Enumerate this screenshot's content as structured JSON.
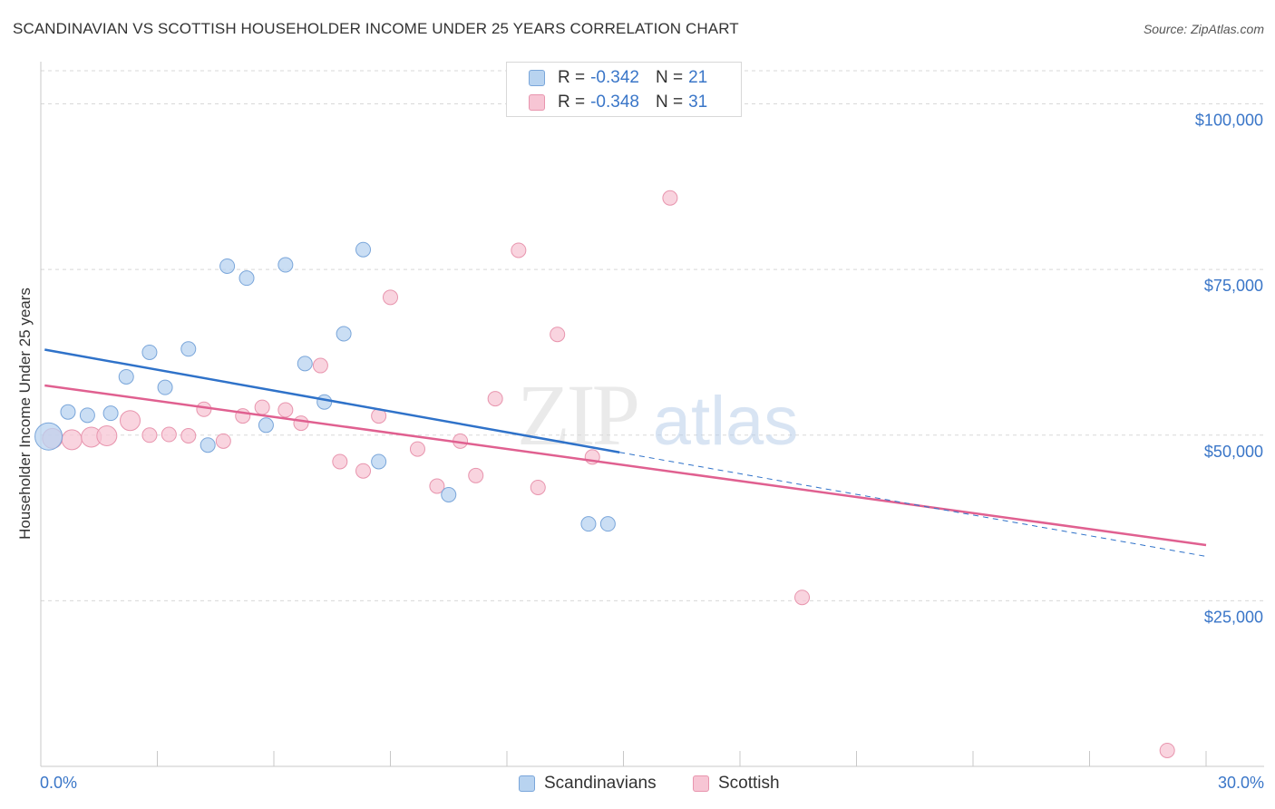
{
  "title": "SCANDINAVIAN VS SCOTTISH HOUSEHOLDER INCOME UNDER 25 YEARS CORRELATION CHART",
  "source": "Source: ZipAtlas.com",
  "watermark": {
    "zip": "ZIP",
    "atlas": "atlas"
  },
  "legend": {
    "rows": [
      {
        "r_label": "R =",
        "r_value": "-0.342",
        "n_label": "N =",
        "n_value": "21"
      },
      {
        "r_label": "R =",
        "r_value": "-0.348",
        "n_label": "N =",
        "n_value": "31"
      }
    ]
  },
  "bottom_legend": [
    "Scandinavians",
    "Scottish"
  ],
  "colors": {
    "scandinavian_fill": "#b8d3f0",
    "scandinavian_stroke": "#7aa6da",
    "scandinavian_line": "#2f72c9",
    "scottish_fill": "#f7c5d4",
    "scottish_stroke": "#e895ae",
    "scottish_line": "#e06090",
    "grid": "#d8d8d8",
    "axis_text": "#3a76c8"
  },
  "chart_data": {
    "type": "scatter",
    "title": "SCANDINAVIAN VS SCOTTISH HOUSEHOLDER INCOME UNDER 25 YEARS CORRELATION CHART",
    "xlabel": "",
    "ylabel": "Householder Income Under 25 years",
    "xlim": [
      0,
      30
    ],
    "ylim": [
      0,
      105000
    ],
    "x_tick_labels": [
      "0.0%",
      "30.0%"
    ],
    "y_ticks": [
      25000,
      50000,
      75000,
      100000
    ],
    "y_tick_labels": [
      "$25,000",
      "$50,000",
      "$75,000",
      "$100,000"
    ],
    "grid": true,
    "legend_position": "top-center",
    "series": [
      {
        "name": "Scandinavians",
        "points": [
          {
            "x": 0.2,
            "y": 49800,
            "size": "large"
          },
          {
            "x": 0.7,
            "y": 53500
          },
          {
            "x": 1.2,
            "y": 53000
          },
          {
            "x": 1.8,
            "y": 53300
          },
          {
            "x": 2.2,
            "y": 58800
          },
          {
            "x": 2.8,
            "y": 62500
          },
          {
            "x": 3.2,
            "y": 57200
          },
          {
            "x": 3.8,
            "y": 63000
          },
          {
            "x": 4.3,
            "y": 48500
          },
          {
            "x": 4.8,
            "y": 75500
          },
          {
            "x": 5.3,
            "y": 73700
          },
          {
            "x": 5.8,
            "y": 51500
          },
          {
            "x": 6.3,
            "y": 75700
          },
          {
            "x": 6.8,
            "y": 60800
          },
          {
            "x": 7.3,
            "y": 55000
          },
          {
            "x": 7.8,
            "y": 65300
          },
          {
            "x": 8.3,
            "y": 78000
          },
          {
            "x": 8.7,
            "y": 46000
          },
          {
            "x": 10.5,
            "y": 41000
          },
          {
            "x": 14.1,
            "y": 36600
          },
          {
            "x": 14.6,
            "y": 36600
          }
        ],
        "trend": {
          "x1": 0.1,
          "y1": 62900,
          "x2": 14.9,
          "y2": 47400,
          "dash_x2": 30,
          "dash_y2": 31700
        }
      },
      {
        "name": "Scottish",
        "points": [
          {
            "x": 0.3,
            "y": 49500,
            "size": "medium"
          },
          {
            "x": 0.8,
            "y": 49300,
            "size": "medium"
          },
          {
            "x": 1.3,
            "y": 49700,
            "size": "medium"
          },
          {
            "x": 1.7,
            "y": 49900,
            "size": "medium"
          },
          {
            "x": 2.3,
            "y": 52200,
            "size": "medium"
          },
          {
            "x": 2.8,
            "y": 50000
          },
          {
            "x": 3.3,
            "y": 50100
          },
          {
            "x": 3.8,
            "y": 49900
          },
          {
            "x": 4.2,
            "y": 53900
          },
          {
            "x": 4.7,
            "y": 49100
          },
          {
            "x": 5.2,
            "y": 52900
          },
          {
            "x": 5.7,
            "y": 54200
          },
          {
            "x": 6.3,
            "y": 53800
          },
          {
            "x": 6.7,
            "y": 51800
          },
          {
            "x": 7.2,
            "y": 60500
          },
          {
            "x": 7.7,
            "y": 46000
          },
          {
            "x": 8.3,
            "y": 44600
          },
          {
            "x": 8.7,
            "y": 52900
          },
          {
            "x": 9.0,
            "y": 70800
          },
          {
            "x": 9.7,
            "y": 47900
          },
          {
            "x": 10.2,
            "y": 42300
          },
          {
            "x": 10.8,
            "y": 49100
          },
          {
            "x": 11.2,
            "y": 43900
          },
          {
            "x": 11.7,
            "y": 55500
          },
          {
            "x": 12.3,
            "y": 77900
          },
          {
            "x": 12.8,
            "y": 42100
          },
          {
            "x": 13.3,
            "y": 65200
          },
          {
            "x": 14.2,
            "y": 46700
          },
          {
            "x": 16.2,
            "y": 85800
          },
          {
            "x": 19.6,
            "y": 25500
          },
          {
            "x": 29.0,
            "y": 2400
          }
        ],
        "trend": {
          "x1": 0.1,
          "y1": 57500,
          "x2": 30,
          "y2": 33400
        }
      }
    ]
  }
}
